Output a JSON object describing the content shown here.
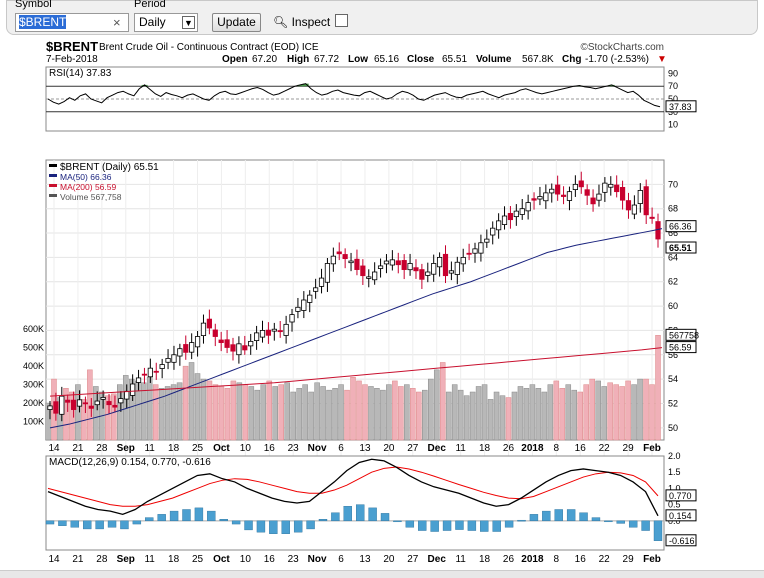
{
  "toolbar": {
    "symbol_label": "Symbol",
    "symbol_value": "$BRENT",
    "period_label": "Period",
    "period_value": "Daily",
    "update_label": "Update",
    "inspect_label": "Inspect"
  },
  "header": {
    "symbol": "$BRENT",
    "name": "Brent Crude Oil - Continuous Contract (EOD)  ICE",
    "brand": "©StockCharts.com",
    "date": "7-Feb-2018",
    "open_l": "Open",
    "open_v": "67.20",
    "high_l": "High",
    "high_v": "67.72",
    "low_l": "Low",
    "low_v": "65.16",
    "close_l": "Close",
    "close_v": "65.51",
    "vol_l": "Volume",
    "vol_v": "567.8K",
    "chg_l": "Chg",
    "chg_v": "-1.70 (-2.53%)"
  },
  "chart_data": [
    {
      "type": "line",
      "title": "RSI(14) 37.83",
      "ylim": [
        0,
        100
      ],
      "yticks": [
        10,
        30,
        50,
        70,
        90
      ],
      "reference_lines": [
        30,
        50,
        70
      ],
      "last_value_label": "37.83",
      "series": [
        {
          "name": "RSI(14)",
          "values": [
            50,
            45,
            42,
            46,
            52,
            48,
            55,
            58,
            50,
            47,
            44,
            52,
            56,
            60,
            62,
            58,
            55,
            66,
            72,
            65,
            58,
            54,
            60,
            57,
            55,
            52,
            56,
            58,
            54,
            50,
            48,
            55,
            60,
            62,
            58,
            57,
            60,
            63,
            66,
            68,
            65,
            60,
            56,
            58,
            62,
            66,
            70,
            72,
            74,
            66,
            60,
            56,
            58,
            62,
            64,
            60,
            58,
            56,
            55,
            60,
            62,
            58,
            54,
            50,
            52,
            58,
            62,
            60,
            56,
            50,
            48,
            52,
            56,
            58,
            60,
            56,
            53,
            52,
            56,
            58,
            60,
            62,
            58,
            55,
            52,
            56,
            58,
            60,
            64,
            66,
            63,
            60,
            58,
            60,
            62,
            64,
            66,
            68,
            70,
            71,
            69,
            68,
            66,
            68,
            70,
            72,
            68,
            64,
            60,
            62,
            56,
            48,
            44,
            40,
            37.83
          ]
        }
      ]
    },
    {
      "type": "candlestick",
      "title": "$BRENT (Daily) 65.51",
      "ylim": [
        49,
        72
      ],
      "yticks": [
        50,
        52,
        54,
        56,
        58,
        60,
        62,
        64,
        66,
        68,
        70
      ],
      "x_tick_labels": [
        "14",
        "21",
        "28",
        "Sep",
        "11",
        "18",
        "25",
        "Oct",
        "10",
        "16",
        "23",
        "Nov",
        "6",
        "13",
        "20",
        "27",
        "Dec",
        "11",
        "18",
        "26",
        "2018",
        "8",
        "16",
        "22",
        "29",
        "Feb"
      ],
      "legend": [
        "$BRENT (Daily) 65.51",
        "MA(50) 66.36",
        "MA(200) 56.59",
        "Volume 567,758"
      ],
      "volume_axis_labels": [
        "600K",
        "500K",
        "400K",
        "300K",
        "200K",
        "100K"
      ],
      "right_labels": {
        "ma50": "66.36",
        "close": "65.51",
        "ma200": "56.59",
        "volume": "567758"
      },
      "series": [
        {
          "name": "Close",
          "values": [
            51.8,
            51.2,
            52.6,
            52.1,
            51.5,
            52.3,
            52.0,
            51.6,
            52.2,
            52.5,
            51.9,
            51.7,
            52.4,
            53.0,
            53.6,
            54.1,
            54.4,
            54.9,
            54.6,
            55.2,
            55.7,
            56.0,
            56.5,
            56.2,
            57.0,
            57.5,
            58.6,
            58.2,
            57.5,
            57.0,
            56.6,
            56.3,
            56.9,
            56.4,
            57.1,
            57.8,
            58.0,
            57.6,
            58.1,
            57.9,
            58.5,
            59.3,
            59.9,
            60.5,
            60.9,
            61.5,
            62.3,
            63.5,
            64.1,
            64.3,
            63.9,
            63.7,
            63.0,
            62.5,
            62.4,
            62.8,
            63.3,
            63.7,
            63.8,
            63.4,
            63.0,
            63.5,
            62.9,
            62.2,
            62.8,
            63.5,
            64.0,
            62.5,
            62.9,
            63.6,
            64.0,
            64.3,
            64.7,
            65.2,
            65.5,
            66.4,
            67.0,
            67.4,
            67.1,
            67.8,
            68.0,
            68.5,
            68.7,
            69.0,
            69.3,
            69.6,
            69.2,
            69.0,
            69.4,
            70.0,
            69.8,
            69.1,
            68.4,
            69.2,
            70.1,
            70.0,
            69.4,
            68.7,
            67.9,
            68.3,
            69.5,
            67.5,
            67.2,
            65.51
          ]
        },
        {
          "name": "MA(50)",
          "values": [
            50.0,
            50.15,
            50.3,
            50.5,
            50.7,
            50.9,
            51.1,
            51.35,
            51.6,
            51.85,
            52.1,
            52.35,
            52.6,
            52.9,
            53.2,
            53.5,
            53.8,
            54.1,
            54.4,
            54.7,
            55.0,
            55.3,
            55.6,
            55.9,
            56.2,
            56.5,
            56.8,
            57.1,
            57.4,
            57.7,
            58.0,
            58.3,
            58.6,
            58.9,
            59.2,
            59.5,
            59.8,
            60.1,
            60.4,
            60.7,
            61.0,
            61.25,
            61.5,
            61.75,
            62.0,
            62.3,
            62.6,
            62.9,
            63.2,
            63.5,
            63.8,
            64.1,
            64.4,
            64.6,
            64.8,
            65.0,
            65.15,
            65.3,
            65.45,
            65.6,
            65.75,
            65.9,
            66.05,
            66.2,
            66.36
          ]
        },
        {
          "name": "MA(200)",
          "values": [
            52.6,
            52.7,
            52.8,
            52.9,
            53.0,
            53.1,
            53.2,
            53.3,
            53.4,
            53.5,
            53.6,
            53.7,
            53.85,
            54.0,
            54.15,
            54.3,
            54.45,
            54.6,
            54.75,
            54.9,
            55.05,
            55.2,
            55.35,
            55.5,
            55.65,
            55.8,
            55.95,
            56.1,
            56.25,
            56.4,
            56.59
          ]
        },
        {
          "name": "Volume",
          "values": [
            200,
            330,
            230,
            280,
            260,
            300,
            220,
            380,
            290,
            260,
            240,
            250,
            300,
            350,
            330,
            320,
            310,
            340,
            300,
            280,
            290,
            300,
            310,
            400,
            420,
            360,
            330,
            320,
            300,
            290,
            280,
            320,
            310,
            300,
            290,
            270,
            300,
            320,
            290,
            300,
            310,
            260,
            280,
            300,
            260,
            310,
            290,
            270,
            280,
            300,
            270,
            340,
            320,
            300,
            290,
            280,
            270,
            300,
            320,
            290,
            300,
            280,
            260,
            270,
            330,
            380,
            420,
            260,
            300,
            270,
            240,
            260,
            290,
            300,
            220,
            260,
            240,
            230,
            260,
            290,
            280,
            300,
            280,
            260,
            300,
            320,
            280,
            300,
            270,
            260,
            300,
            330,
            320,
            290,
            310,
            300,
            290,
            320,
            300,
            330,
            330,
            300,
            567
          ]
        }
      ]
    },
    {
      "type": "line",
      "title": "MACD(12,26,9) 0.154, 0.770, -0.616",
      "ylim": [
        -0.9,
        2.0
      ],
      "yticks": [
        0.0,
        0.5,
        1.0,
        1.5,
        2.0
      ],
      "right_labels": {
        "signal": "0.770",
        "macd": "0.154",
        "hist": "-0.616"
      },
      "series": [
        {
          "name": "MACD",
          "values": [
            0.9,
            0.75,
            0.6,
            0.45,
            0.35,
            0.3,
            0.2,
            0.35,
            0.6,
            0.8,
            1.0,
            1.2,
            1.4,
            1.45,
            1.3,
            1.2,
            1.0,
            0.85,
            0.7,
            0.6,
            0.55,
            0.6,
            0.9,
            1.2,
            1.55,
            1.8,
            1.9,
            1.85,
            1.65,
            1.4,
            1.2,
            1.05,
            0.95,
            0.85,
            0.7,
            0.55,
            0.45,
            0.5,
            0.7,
            0.95,
            1.2,
            1.4,
            1.55,
            1.6,
            1.55,
            1.5,
            1.4,
            1.2,
            0.9,
            0.154
          ]
        },
        {
          "name": "Signal",
          "values": [
            1.0,
            0.9,
            0.8,
            0.7,
            0.6,
            0.5,
            0.45,
            0.45,
            0.5,
            0.6,
            0.7,
            0.85,
            1.0,
            1.15,
            1.25,
            1.3,
            1.28,
            1.2,
            1.1,
            1.0,
            0.9,
            0.85,
            0.85,
            0.95,
            1.1,
            1.3,
            1.5,
            1.62,
            1.66,
            1.6,
            1.5,
            1.38,
            1.25,
            1.12,
            1.0,
            0.88,
            0.78,
            0.7,
            0.68,
            0.75,
            0.9,
            1.05,
            1.2,
            1.35,
            1.45,
            1.5,
            1.48,
            1.4,
            1.2,
            0.77
          ]
        },
        {
          "name": "Histogram",
          "values": [
            -0.1,
            -0.15,
            -0.2,
            -0.25,
            -0.25,
            -0.2,
            -0.25,
            -0.1,
            0.1,
            0.2,
            0.3,
            0.35,
            0.4,
            0.3,
            0.05,
            -0.1,
            -0.28,
            -0.35,
            -0.4,
            -0.4,
            -0.35,
            -0.25,
            0.05,
            0.25,
            0.45,
            0.5,
            0.4,
            0.23,
            -0.01,
            -0.2,
            -0.3,
            -0.33,
            -0.3,
            -0.27,
            -0.3,
            -0.33,
            -0.33,
            -0.2,
            0.02,
            0.2,
            0.3,
            0.35,
            0.35,
            0.25,
            0.1,
            0.0,
            -0.08,
            -0.2,
            -0.3,
            -0.616
          ]
        }
      ]
    }
  ]
}
